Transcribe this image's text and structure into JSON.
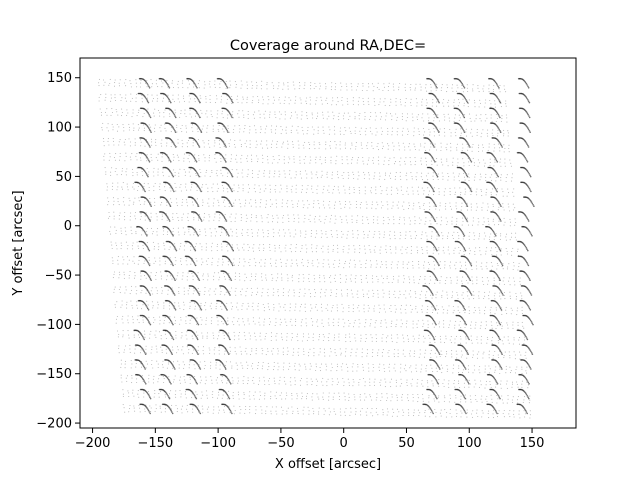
{
  "chart_data": {
    "type": "scatter",
    "title": "Coverage around RA,DEC=",
    "xlabel": "X offset [arcsec]",
    "ylabel": "Y offset [arcsec]",
    "xlim": [
      -210,
      185
    ],
    "ylim": [
      -205,
      170
    ],
    "xticks": [
      -200,
      -150,
      -100,
      -50,
      0,
      50,
      100,
      150
    ],
    "yticks": [
      -200,
      -150,
      -100,
      -50,
      0,
      50,
      100,
      150
    ],
    "grid": false,
    "legend": "none",
    "point_color": "#000000",
    "series": [
      {
        "pattern": "overlapping scan-track coverage points",
        "tracks": {
          "y_values": [
            -185,
            -170,
            -155,
            -140,
            -125,
            -110,
            -95,
            -80,
            -65,
            -50,
            -35,
            -20,
            -5,
            10,
            25,
            40,
            55,
            70,
            85,
            100,
            115,
            130,
            145
          ],
          "x_start_at_ymin": -175,
          "x_start_at_ymax": -195,
          "x_end_at_ymin": 150,
          "x_end_at_ymax": 130,
          "slope": -0.13
        },
        "dense_clusters_x": [
          -160,
          -140,
          -120,
          -95,
          70,
          95,
          120,
          145
        ]
      }
    ]
  }
}
